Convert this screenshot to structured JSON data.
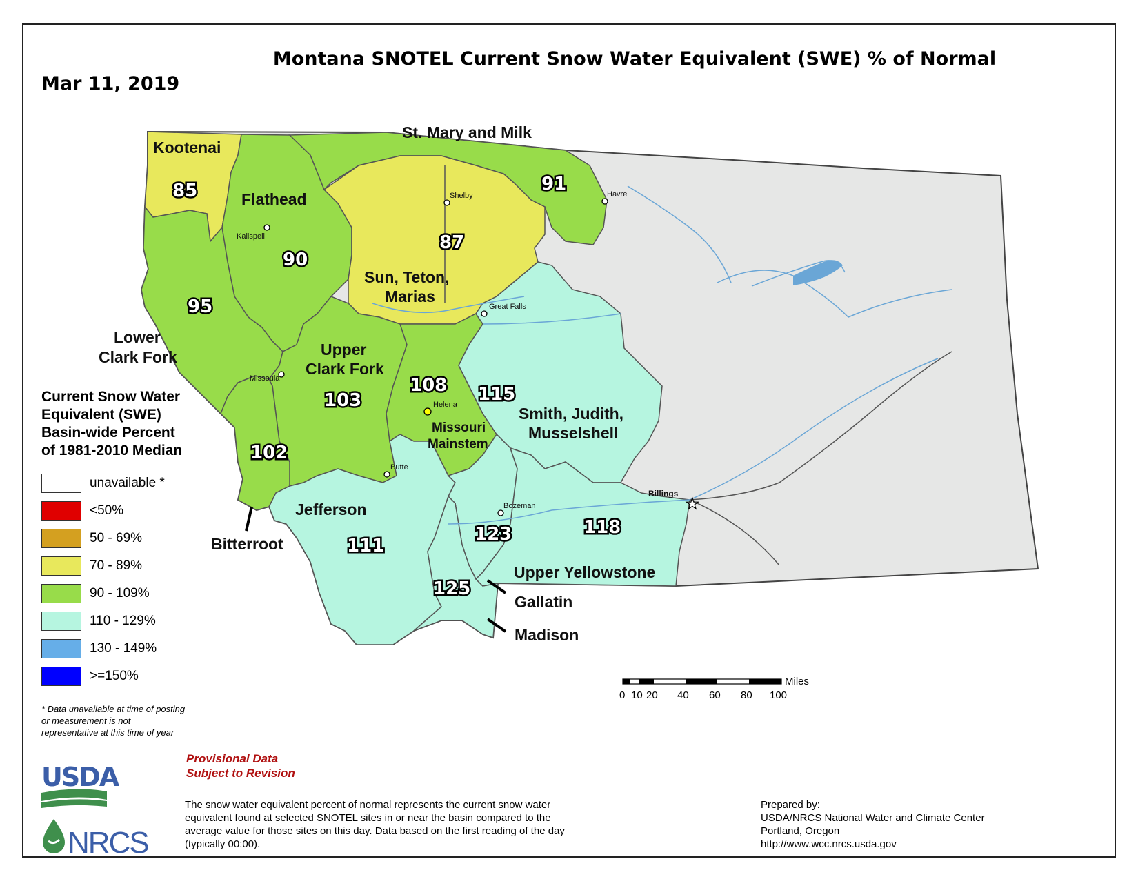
{
  "title": "Montana SNOTEL Current Snow Water Equivalent (SWE) % of Normal",
  "date": "Mar 11, 2019",
  "colors": {
    "unavailable": "#ffffff",
    "lt50": "#e00000",
    "50_69": "#d4a020",
    "70_89": "#e8e85c",
    "90_109": "#98dc4a",
    "110_129": "#b6f5e0",
    "130_149": "#66aee8",
    "gte150": "#0000ff",
    "no_basin_land": "#e6e7e6",
    "rivers": "#6aa6d6"
  },
  "basins": [
    {
      "name": "Kootenai",
      "value": "85",
      "category": "70_89"
    },
    {
      "name": "Flathead",
      "value": "90",
      "category": "90_109"
    },
    {
      "name": "St. Mary and Milk",
      "value": "91",
      "category": "90_109"
    },
    {
      "name": "Sun, Teton, Marias",
      "value": "87",
      "category": "70_89"
    },
    {
      "name": "Lower Clark Fork",
      "value": "95",
      "category": "90_109"
    },
    {
      "name": "Upper Clark Fork",
      "value": "103",
      "category": "90_109"
    },
    {
      "name": "Missouri Mainstem",
      "value": "108",
      "category": "90_109"
    },
    {
      "name": "Smith, Judith, Musselshell",
      "value": "115",
      "category": "110_129"
    },
    {
      "name": "Bitterroot",
      "value": "102",
      "category": "90_109"
    },
    {
      "name": "Jefferson",
      "value": "111",
      "category": "110_129"
    },
    {
      "name": "Gallatin",
      "value": "123",
      "category": "110_129"
    },
    {
      "name": "Madison",
      "value": "125",
      "category": "110_129"
    },
    {
      "name": "Upper Yellowstone",
      "value": "118",
      "category": "110_129"
    }
  ],
  "cities": [
    "Shelby",
    "Havre",
    "Kalispell",
    "Great Falls",
    "Missoula",
    "Helena",
    "Butte",
    "Bozeman",
    "Billings"
  ],
  "legend": {
    "title_lines": [
      "Current Snow Water",
      "Equivalent (SWE)",
      "Basin-wide Percent",
      "of 1981-2010 Median"
    ],
    "items": [
      {
        "label": "unavailable *",
        "category": "unavailable"
      },
      {
        "label": "<50%",
        "category": "lt50"
      },
      {
        "label": "50 - 69%",
        "category": "50_69"
      },
      {
        "label": "70 - 89%",
        "category": "70_89"
      },
      {
        "label": "90 - 109%",
        "category": "90_109"
      },
      {
        "label": "110 - 129%",
        "category": "110_129"
      },
      {
        "label": "130 - 149%",
        "category": "130_149"
      },
      {
        "label": ">=150%",
        "category": "gte150"
      }
    ]
  },
  "footnote": "*  Data unavailable at time of posting or measurement is not representative at this time of year",
  "provisional": [
    "Provisional Data",
    "Subject to Revision"
  ],
  "scale": {
    "unit": "Miles",
    "ticks": [
      "0",
      "10",
      "20",
      "40",
      "60",
      "80",
      "100"
    ]
  },
  "description": "The snow water equivalent percent of normal represents the current snow water equivalent found at selected SNOTEL sites in or near the basin compared to the average value for those sites on this day. Data based on the first reading of the day (typically 00:00).",
  "prepared": [
    "Prepared by:",
    "USDA/NRCS National Water and Climate Center",
    "Portland, Oregon",
    "http://www.wcc.nrcs.usda.gov"
  ],
  "logos": {
    "usda": "USDA",
    "nrcs": "NRCS"
  }
}
